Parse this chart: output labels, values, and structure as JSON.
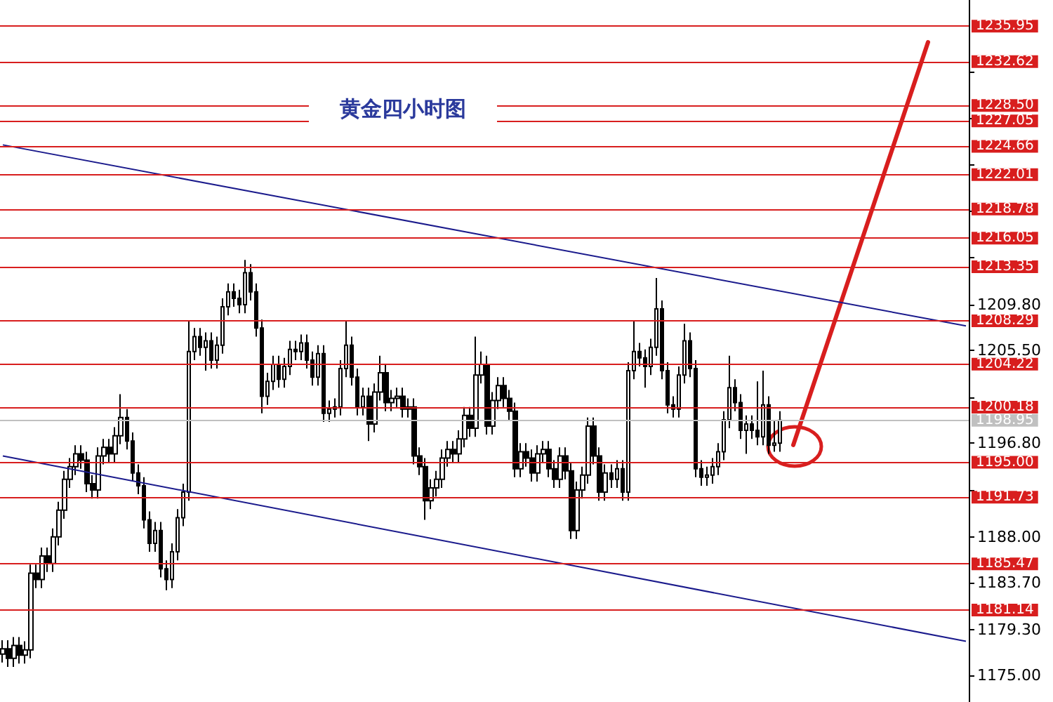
{
  "chart_data": {
    "type": "candlestick",
    "title": "黄金四小时图",
    "categories": [
      null,
      null,
      null,
      null,
      null,
      null,
      null,
      null,
      null,
      null,
      null,
      null,
      null,
      null,
      null,
      null,
      null,
      null,
      null,
      null,
      null,
      null,
      null,
      null,
      null,
      null,
      null,
      null,
      null,
      null,
      null,
      null,
      null,
      null,
      null,
      null,
      null,
      null,
      null,
      null,
      null,
      null,
      null,
      null,
      null,
      null,
      null,
      null,
      null,
      null,
      null,
      null,
      null,
      null,
      null,
      null,
      null,
      null,
      null,
      null,
      null,
      null,
      null,
      null,
      null,
      null,
      null,
      null,
      null,
      null,
      null,
      null,
      null,
      null,
      null,
      null,
      null,
      null,
      null,
      null,
      null,
      null,
      null,
      null,
      null,
      null,
      null,
      null,
      null,
      null,
      null,
      null,
      null,
      null,
      null,
      null,
      null,
      null,
      null,
      null,
      null,
      null,
      null,
      null,
      null,
      null,
      null,
      null,
      null,
      null,
      null,
      null,
      null,
      null,
      null,
      null,
      null,
      null,
      null,
      null,
      null,
      null,
      null,
      null,
      null,
      null,
      null,
      null,
      null,
      null,
      null,
      null,
      null,
      null,
      null,
      null,
      null,
      null,
      null,
      null,
      null,
      null,
      null,
      null,
      null,
      null,
      null,
      null,
      null,
      null,
      null,
      null,
      null,
      null,
      null,
      null,
      null,
      null,
      null,
      null,
      null,
      null,
      null,
      null,
      null,
      null,
      null,
      null,
      null,
      null,
      null,
      null
    ],
    "ylim": [
      1172.5,
      1238.4
    ],
    "yticks": [
      {
        "value": 1175,
        "label": "1175.00"
      },
      {
        "value": 1179.3,
        "label": "1179.30"
      },
      {
        "value": 1183.7,
        "label": "1183.70"
      },
      {
        "value": 1188,
        "label": "1188.00"
      },
      {
        "value": 1192.4,
        "label": null
      },
      {
        "value": 1196.8,
        "label": "1196.80"
      },
      {
        "value": 1201.1,
        "label": null
      },
      {
        "value": 1205.5,
        "label": "1205.50"
      },
      {
        "value": 1209.8,
        "label": "1209.80"
      },
      {
        "value": 1214.2,
        "label": null
      },
      {
        "value": 1218.6,
        "label": null
      },
      {
        "value": 1222.9,
        "label": null
      },
      {
        "value": 1227.3,
        "label": null
      },
      {
        "value": 1231.6,
        "label": null
      }
    ],
    "series": [
      {
        "color": "#000000",
        "ohlc": [
          [
            1177.0,
            1178.3,
            1176.2,
            1177.5
          ],
          [
            1177.5,
            1178.3,
            1175.8,
            1176.6
          ],
          [
            1176.6,
            1178.6,
            1175.8,
            1177.8
          ],
          [
            1177.8,
            1178.6,
            1176.1,
            1176.9
          ],
          [
            1176.9,
            1178.2,
            1176.1,
            1177.4
          ],
          [
            1177.4,
            1185.4,
            1176.6,
            1184.6
          ],
          [
            1184.6,
            1185.4,
            1183.2,
            1184.0
          ],
          [
            1184.0,
            1187.0,
            1183.2,
            1186.2
          ],
          [
            1186.2,
            1187.0,
            1184.7,
            1185.5
          ],
          [
            1185.5,
            1188.8,
            1184.7,
            1188.0
          ],
          [
            1188.0,
            1191.3,
            1187.2,
            1190.5
          ],
          [
            1190.5,
            1194.2,
            1189.7,
            1193.4
          ],
          [
            1193.4,
            1195.4,
            1192.6,
            1194.6
          ],
          [
            1194.6,
            1196.6,
            1193.8,
            1195.8
          ],
          [
            1195.8,
            1196.6,
            1194.4,
            1195.2
          ],
          [
            1195.2,
            1196.0,
            1192.2,
            1193.0
          ],
          [
            1193.0,
            1193.8,
            1191.6,
            1192.4
          ],
          [
            1192.4,
            1196.4,
            1191.6,
            1195.6
          ],
          [
            1195.6,
            1197.2,
            1194.8,
            1196.4
          ],
          [
            1196.4,
            1197.2,
            1195.0,
            1195.8
          ],
          [
            1195.8,
            1198.3,
            1195.0,
            1197.5
          ],
          [
            1197.5,
            1201.4,
            1196.7,
            1199.2
          ],
          [
            1199.2,
            1200.0,
            1196.2,
            1197.0
          ],
          [
            1197.0,
            1197.8,
            1193.2,
            1194.0
          ],
          [
            1194.0,
            1194.8,
            1192.0,
            1192.8
          ],
          [
            1192.8,
            1193.6,
            1188.8,
            1189.6
          ],
          [
            1189.6,
            1190.4,
            1186.6,
            1187.4
          ],
          [
            1187.4,
            1189.4,
            1186.6,
            1188.6
          ],
          [
            1188.6,
            1189.4,
            1184.2,
            1185.0
          ],
          [
            1185.0,
            1185.8,
            1183.0,
            1184.0
          ],
          [
            1184.0,
            1187.4,
            1183.2,
            1186.6
          ],
          [
            1186.6,
            1190.6,
            1185.8,
            1189.8
          ],
          [
            1189.8,
            1193.0,
            1189.0,
            1192.2
          ],
          [
            1192.2,
            1208.3,
            1191.4,
            1205.4
          ],
          [
            1205.4,
            1207.6,
            1204.6,
            1206.8
          ],
          [
            1206.8,
            1207.6,
            1205.0,
            1205.8
          ],
          [
            1205.8,
            1207.2,
            1203.6,
            1206.4
          ],
          [
            1206.4,
            1207.2,
            1203.8,
            1204.6
          ],
          [
            1204.6,
            1206.8,
            1203.8,
            1206.0
          ],
          [
            1206.0,
            1210.4,
            1205.2,
            1209.6
          ],
          [
            1209.6,
            1211.8,
            1208.8,
            1211.0
          ],
          [
            1211.0,
            1211.8,
            1209.6,
            1210.4
          ],
          [
            1210.4,
            1211.2,
            1209.0,
            1209.8
          ],
          [
            1209.8,
            1214.0,
            1209.0,
            1212.8
          ],
          [
            1212.8,
            1213.6,
            1210.2,
            1211.0
          ],
          [
            1211.0,
            1211.8,
            1206.8,
            1207.6
          ],
          [
            1207.6,
            1208.4,
            1199.6,
            1201.2
          ],
          [
            1201.2,
            1203.4,
            1200.4,
            1202.6
          ],
          [
            1202.6,
            1205.0,
            1201.8,
            1204.2
          ],
          [
            1204.2,
            1205.0,
            1202.0,
            1202.8
          ],
          [
            1202.8,
            1204.8,
            1202.0,
            1204.0
          ],
          [
            1204.0,
            1206.4,
            1203.2,
            1205.6
          ],
          [
            1205.6,
            1206.4,
            1204.6,
            1205.4
          ],
          [
            1205.4,
            1207.0,
            1204.6,
            1206.2
          ],
          [
            1206.2,
            1207.0,
            1203.8,
            1204.6
          ],
          [
            1204.6,
            1205.4,
            1202.2,
            1203.0
          ],
          [
            1203.0,
            1206.0,
            1202.2,
            1205.2
          ],
          [
            1205.2,
            1206.0,
            1198.8,
            1199.6
          ],
          [
            1199.6,
            1200.8,
            1198.8,
            1200.0
          ],
          [
            1200.0,
            1201.0,
            1199.2,
            1200.2
          ],
          [
            1200.2,
            1204.6,
            1199.4,
            1203.8
          ],
          [
            1203.8,
            1208.3,
            1203.0,
            1206.0
          ],
          [
            1206.0,
            1206.8,
            1202.2,
            1203.0
          ],
          [
            1203.0,
            1203.8,
            1199.4,
            1200.2
          ],
          [
            1200.2,
            1202.0,
            1199.4,
            1201.2
          ],
          [
            1201.2,
            1202.0,
            1197.0,
            1198.6
          ],
          [
            1198.6,
            1202.4,
            1197.8,
            1201.6
          ],
          [
            1201.6,
            1205.0,
            1200.8,
            1203.4
          ],
          [
            1203.4,
            1204.2,
            1199.8,
            1200.6
          ],
          [
            1200.6,
            1201.8,
            1199.8,
            1201.0
          ],
          [
            1201.0,
            1202.0,
            1200.2,
            1201.2
          ],
          [
            1201.2,
            1202.0,
            1199.2,
            1200.0
          ],
          [
            1200.0,
            1201.0,
            1199.2,
            1200.2
          ],
          [
            1200.2,
            1201.0,
            1194.8,
            1195.6
          ],
          [
            1195.6,
            1196.4,
            1193.8,
            1194.6
          ],
          [
            1194.6,
            1195.4,
            1189.6,
            1191.4
          ],
          [
            1191.4,
            1193.4,
            1190.6,
            1192.6
          ],
          [
            1192.6,
            1194.2,
            1191.8,
            1193.4
          ],
          [
            1193.4,
            1196.2,
            1192.6,
            1195.4
          ],
          [
            1195.4,
            1197.0,
            1194.6,
            1196.2
          ],
          [
            1196.2,
            1197.0,
            1195.0,
            1195.8
          ],
          [
            1195.8,
            1198.0,
            1195.0,
            1197.2
          ],
          [
            1197.2,
            1200.2,
            1196.4,
            1199.4
          ],
          [
            1199.4,
            1200.2,
            1197.4,
            1198.2
          ],
          [
            1198.2,
            1206.8,
            1197.4,
            1203.2
          ],
          [
            1203.2,
            1205.4,
            1202.4,
            1204.2
          ],
          [
            1204.2,
            1205.0,
            1197.6,
            1198.4
          ],
          [
            1198.4,
            1201.6,
            1197.6,
            1200.8
          ],
          [
            1200.8,
            1203.0,
            1200.0,
            1202.2
          ],
          [
            1202.2,
            1203.0,
            1200.2,
            1201.0
          ],
          [
            1201.0,
            1201.8,
            1199.0,
            1199.8
          ],
          [
            1199.8,
            1200.6,
            1193.6,
            1194.4
          ],
          [
            1194.4,
            1196.8,
            1193.6,
            1196.0
          ],
          [
            1196.0,
            1196.8,
            1194.6,
            1195.4
          ],
          [
            1195.4,
            1196.2,
            1193.2,
            1194.0
          ],
          [
            1194.0,
            1196.6,
            1193.2,
            1195.8
          ],
          [
            1195.8,
            1197.0,
            1195.0,
            1196.2
          ],
          [
            1196.2,
            1197.0,
            1193.6,
            1194.4
          ],
          [
            1194.4,
            1195.2,
            1192.6,
            1193.4
          ],
          [
            1193.4,
            1196.4,
            1192.6,
            1195.6
          ],
          [
            1195.6,
            1196.4,
            1193.4,
            1194.2
          ],
          [
            1194.2,
            1195.0,
            1187.8,
            1188.6
          ],
          [
            1188.6,
            1193.2,
            1187.8,
            1192.4
          ],
          [
            1192.4,
            1194.6,
            1191.6,
            1193.8
          ],
          [
            1193.8,
            1199.2,
            1193.0,
            1198.4
          ],
          [
            1198.4,
            1199.2,
            1194.8,
            1195.6
          ],
          [
            1195.6,
            1196.4,
            1191.4,
            1192.2
          ],
          [
            1192.2,
            1194.8,
            1191.4,
            1194.0
          ],
          [
            1194.0,
            1194.8,
            1192.6,
            1193.4
          ],
          [
            1193.4,
            1195.2,
            1192.6,
            1194.4
          ],
          [
            1194.4,
            1195.2,
            1191.4,
            1192.2
          ],
          [
            1192.2,
            1204.4,
            1191.4,
            1203.6
          ],
          [
            1203.6,
            1208.3,
            1202.8,
            1205.4
          ],
          [
            1205.4,
            1206.2,
            1204.0,
            1204.8
          ],
          [
            1204.8,
            1205.6,
            1202.0,
            1204.0
          ],
          [
            1204.0,
            1206.6,
            1203.2,
            1205.8
          ],
          [
            1205.8,
            1212.3,
            1205.0,
            1209.4
          ],
          [
            1209.4,
            1210.2,
            1202.8,
            1203.6
          ],
          [
            1203.6,
            1204.4,
            1199.6,
            1200.4
          ],
          [
            1200.4,
            1201.2,
            1199.2,
            1200.0
          ],
          [
            1200.0,
            1204.0,
            1199.2,
            1203.2
          ],
          [
            1203.2,
            1208.0,
            1202.4,
            1206.4
          ],
          [
            1206.4,
            1207.2,
            1203.0,
            1203.8
          ],
          [
            1203.8,
            1204.6,
            1193.6,
            1194.4
          ],
          [
            1194.4,
            1195.2,
            1192.8,
            1193.6
          ],
          [
            1193.6,
            1194.6,
            1192.8,
            1193.8
          ],
          [
            1193.8,
            1195.4,
            1193.0,
            1194.6
          ],
          [
            1194.6,
            1196.8,
            1193.8,
            1196.0
          ],
          [
            1196.0,
            1199.8,
            1195.2,
            1199.0
          ],
          [
            1199.0,
            1205.0,
            1198.2,
            1202.0
          ],
          [
            1202.0,
            1202.8,
            1199.8,
            1200.6
          ],
          [
            1200.6,
            1201.4,
            1197.2,
            1198.0
          ],
          [
            1198.0,
            1199.4,
            1195.8,
            1198.6
          ],
          [
            1198.6,
            1199.4,
            1197.2,
            1198.0
          ],
          [
            1198.0,
            1202.6,
            1196.6,
            1197.4
          ],
          [
            1197.4,
            1203.6,
            1196.6,
            1200.4
          ],
          [
            1200.4,
            1201.2,
            1195.8,
            1196.6
          ],
          [
            1196.6,
            1199.0,
            1196.0,
            1196.8
          ],
          [
            1196.8,
            1199.8,
            1196.0,
            1198.95
          ],
          null,
          null,
          null,
          null,
          null,
          null,
          null,
          null,
          null,
          null,
          null,
          null,
          null,
          null,
          null,
          null,
          null,
          null,
          null,
          null,
          null,
          null,
          null,
          null,
          null,
          null,
          null,
          null,
          null,
          null,
          null,
          null,
          null
        ]
      },
      {
        "type": "line",
        "color": "#1a1a8c",
        "values": [
          1224.8,
          null,
          null,
          null,
          null,
          null,
          null,
          null,
          null,
          null,
          null,
          null,
          null,
          null,
          null,
          null,
          null,
          null,
          null,
          null,
          null,
          null,
          null,
          null,
          null,
          null,
          null,
          null,
          null,
          null,
          null,
          null,
          null,
          null,
          null,
          null,
          null,
          null,
          null,
          null,
          null,
          null,
          null,
          null,
          null,
          null,
          null,
          null,
          null,
          null,
          null,
          null,
          null,
          null,
          null,
          null,
          null,
          null,
          null,
          null,
          null,
          null,
          null,
          null,
          null,
          null,
          null,
          null,
          null,
          null,
          null,
          null,
          null,
          null,
          null,
          null,
          null,
          null,
          null,
          null,
          null,
          null,
          null,
          null,
          null,
          null,
          null,
          null,
          null,
          null,
          null,
          null,
          null,
          null,
          null,
          null,
          null,
          null,
          null,
          null,
          null,
          null,
          null,
          null,
          null,
          null,
          null,
          null,
          null,
          null,
          null,
          null,
          null,
          null,
          null,
          null,
          null,
          null,
          null,
          null,
          null,
          null,
          null,
          null,
          null,
          null,
          null,
          null,
          null,
          null,
          null,
          null,
          null,
          null,
          null,
          null,
          null,
          null,
          null,
          null,
          null,
          null,
          null,
          null,
          null,
          null,
          null,
          null,
          null,
          null,
          null,
          null,
          null,
          null,
          null,
          null,
          null,
          null,
          null,
          null,
          null,
          null,
          null,
          null,
          null,
          null,
          null,
          null,
          null,
          null,
          null,
          1207.8
        ]
      },
      {
        "type": "line",
        "color": "#1a1a8c",
        "values": [
          1195.6,
          null,
          null,
          null,
          null,
          null,
          null,
          null,
          null,
          null,
          null,
          null,
          null,
          null,
          null,
          null,
          null,
          null,
          null,
          null,
          null,
          null,
          null,
          null,
          null,
          null,
          null,
          null,
          null,
          null,
          null,
          null,
          null,
          null,
          null,
          null,
          null,
          null,
          null,
          null,
          null,
          null,
          null,
          null,
          null,
          null,
          null,
          null,
          null,
          null,
          null,
          null,
          null,
          null,
          null,
          null,
          null,
          null,
          null,
          null,
          null,
          null,
          null,
          null,
          null,
          null,
          null,
          null,
          null,
          null,
          null,
          null,
          null,
          null,
          null,
          null,
          null,
          null,
          null,
          null,
          null,
          null,
          null,
          null,
          null,
          null,
          null,
          null,
          null,
          null,
          null,
          null,
          null,
          null,
          null,
          null,
          null,
          null,
          null,
          null,
          null,
          null,
          null,
          null,
          null,
          null,
          null,
          null,
          null,
          null,
          null,
          null,
          null,
          null,
          null,
          null,
          null,
          null,
          null,
          null,
          null,
          null,
          null,
          null,
          null,
          null,
          null,
          null,
          null,
          null,
          null,
          null,
          null,
          null,
          null,
          null,
          null,
          null,
          null,
          null,
          null,
          null,
          null,
          null,
          null,
          null,
          null,
          null,
          null,
          null,
          null,
          null,
          null,
          null,
          null,
          null,
          null,
          null,
          null,
          null,
          null,
          null,
          null,
          null,
          null,
          null,
          null,
          null,
          null,
          null,
          null,
          1178.2
        ]
      }
    ],
    "ref_lines": [
      {
        "axis": "y",
        "value": 1235.95,
        "label": "1235.95",
        "color": "#d81e1e"
      },
      {
        "axis": "y",
        "value": 1232.62,
        "label": "1232.62",
        "color": "#d81e1e"
      },
      {
        "axis": "y",
        "value": 1228.5,
        "label": "1228.50",
        "color": "#d81e1e"
      },
      {
        "axis": "y",
        "value": 1227.05,
        "label": "1227.05",
        "color": "#d81e1e"
      },
      {
        "axis": "y",
        "value": 1224.66,
        "label": "1224.66",
        "color": "#d81e1e"
      },
      {
        "axis": "y",
        "value": 1222.01,
        "label": "1222.01",
        "color": "#d81e1e"
      },
      {
        "axis": "y",
        "value": 1218.78,
        "label": "1218.78",
        "color": "#d81e1e"
      },
      {
        "axis": "y",
        "value": 1216.05,
        "label": "1216.05",
        "color": "#d81e1e"
      },
      {
        "axis": "y",
        "value": 1213.35,
        "label": "1213.35",
        "color": "#d81e1e"
      },
      {
        "axis": "y",
        "value": 1208.29,
        "label": "1208.29",
        "color": "#d81e1e"
      },
      {
        "axis": "y",
        "value": 1204.22,
        "label": "1204.22",
        "color": "#d81e1e"
      },
      {
        "axis": "y",
        "value": 1200.18,
        "label": "1200.18",
        "color": "#d81e1e"
      },
      {
        "axis": "y",
        "value": 1198.95,
        "label": "1198.95",
        "color": "#c0c0c0"
      },
      {
        "axis": "y",
        "value": 1195.0,
        "label": "1195.00",
        "color": "#d81e1e"
      },
      {
        "axis": "y",
        "value": 1191.73,
        "label": "1191.73",
        "color": "#d81e1e"
      },
      {
        "axis": "y",
        "value": 1185.47,
        "label": "1185.47",
        "color": "#d81e1e"
      },
      {
        "axis": "y",
        "value": 1181.14,
        "label": "1181.14",
        "color": "#d81e1e"
      }
    ],
    "tick_labels": "y"
  }
}
